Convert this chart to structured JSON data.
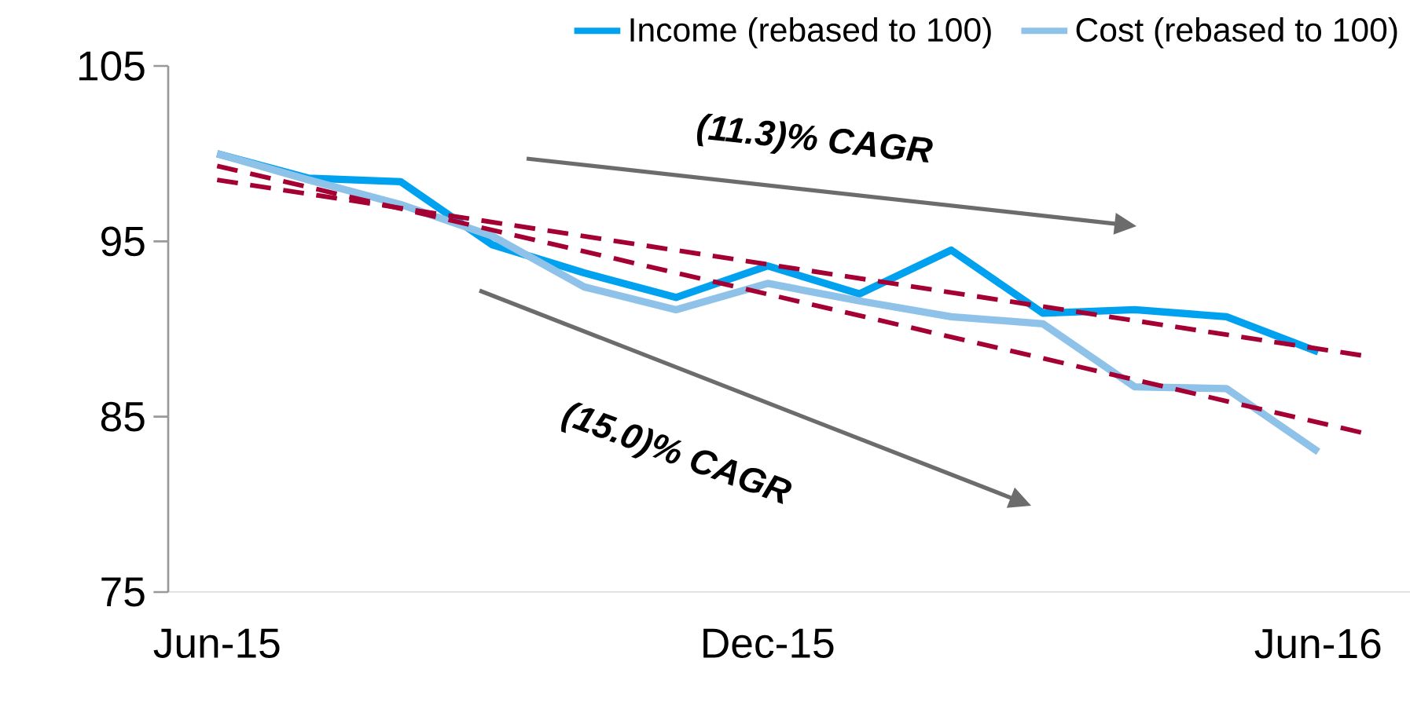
{
  "chart_data": {
    "type": "line",
    "x": [
      "2015-06",
      "2015-07",
      "2015-08",
      "2015-09",
      "2015-10",
      "2015-11",
      "2015-12",
      "2016-01",
      "2016-02",
      "2016-03",
      "2016-04",
      "2016-05",
      "2016-06"
    ],
    "series": [
      {
        "name": "Income (rebased to 100)",
        "color": "#00a2ef",
        "line_style": "solid",
        "values": [
          100,
          98.6,
          98.4,
          94.8,
          93.2,
          91.8,
          93.6,
          92.0,
          94.5,
          90.9,
          91.1,
          90.7,
          88.7
        ]
      },
      {
        "name": "Cost (rebased to 100)",
        "color": "#8ec2e8",
        "line_style": "solid",
        "values": [
          100,
          98.5,
          97.1,
          95.3,
          92.4,
          91.1,
          92.6,
          91.6,
          90.7,
          90.3,
          86.7,
          86.6,
          83.0
        ]
      },
      {
        "type": "line",
        "color": "#a50034",
        "line_style": "dashed",
        "x": [
          "2015-06",
          "2016-06-15"
        ],
        "values": [
          98.5,
          88.5
        ]
      },
      {
        "type": "line",
        "color": "#a50034",
        "line_style": "dashed",
        "x": [
          "2015-06",
          "2016-06-15"
        ],
        "values": [
          99.3,
          84.1
        ]
      }
    ],
    "xlim": [
      "2015-05-15",
      "2016-07"
    ],
    "xticks": [
      {
        "value": "2015-06",
        "label": "Jun-15"
      },
      {
        "value": "2015-12",
        "label": "Dec-15"
      },
      {
        "value": "2016-06",
        "label": "Jun-16"
      }
    ],
    "ylim": [
      75,
      105
    ],
    "yticks": [
      75,
      85,
      95,
      105
    ],
    "legend": "top",
    "marker": "none",
    "annotations": [
      "(11.3)% CAGR",
      "(15.0)% CAGR"
    ]
  }
}
